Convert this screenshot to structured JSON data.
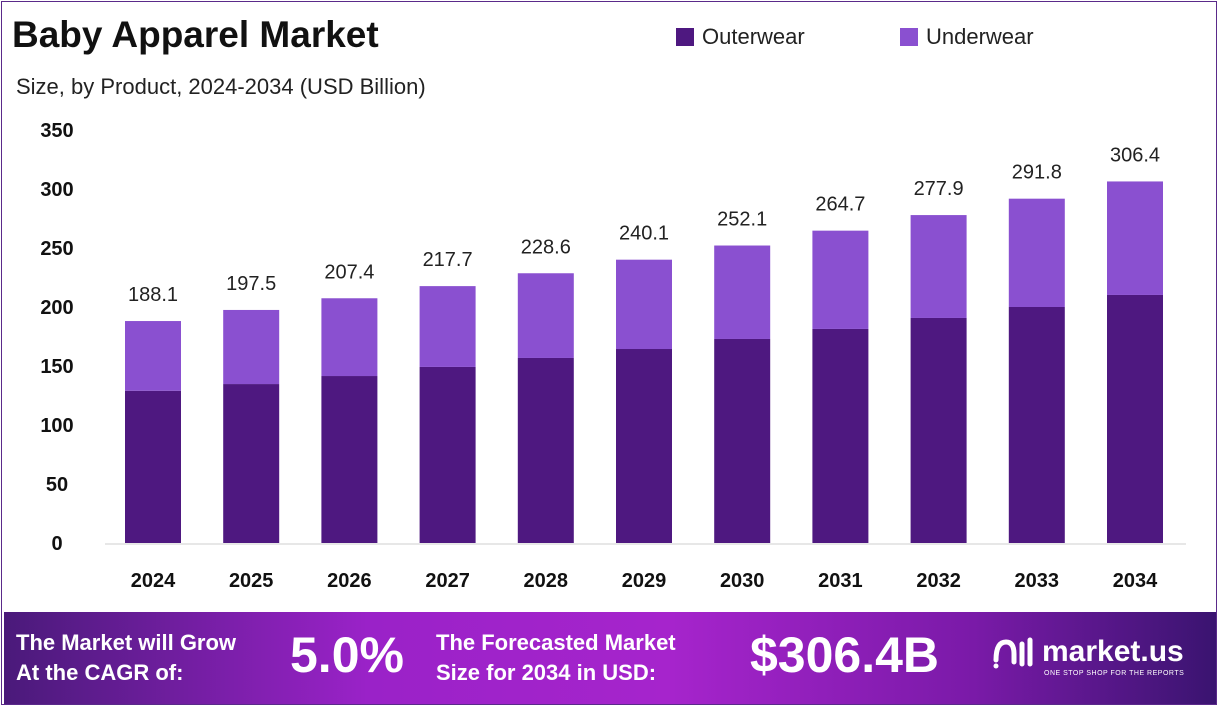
{
  "chart_data": {
    "type": "bar",
    "stacked": true,
    "title": "Baby Apparel Market",
    "subtitle": "Size, by Product, 2024-2034 (USD Billion)",
    "categories": [
      "2024",
      "2025",
      "2026",
      "2027",
      "2028",
      "2029",
      "2030",
      "2031",
      "2032",
      "2033",
      "2034"
    ],
    "series": [
      {
        "name": "Outerwear",
        "color": "#4e1880",
        "values": [
          129.0,
          134.7,
          141.5,
          149.2,
          156.8,
          164.4,
          172.9,
          181.4,
          190.7,
          200.0,
          210.2
        ]
      },
      {
        "name": "Underwear",
        "color": "#8a50d0",
        "values": [
          59.1,
          62.8,
          65.9,
          68.5,
          71.8,
          75.7,
          79.2,
          83.3,
          87.2,
          91.8,
          96.2
        ]
      }
    ],
    "totals": [
      "188.1",
      "197.5",
      "207.4",
      "217.7",
      "228.6",
      "240.1",
      "252.1",
      "264.7",
      "277.9",
      "291.8",
      "306.4"
    ],
    "yticks": [
      "0",
      "50",
      "100",
      "150",
      "200",
      "250",
      "300",
      "350"
    ],
    "ylim": [
      0,
      350
    ],
    "grid": false,
    "legend_position": "top-right"
  },
  "footer": {
    "cagr_line1": "The Market will Grow",
    "cagr_line2": "At the CAGR of:",
    "cagr_value": "5.0%",
    "forecast_line1": "The Forecasted Market",
    "forecast_line2": "Size for 2034 in USD:",
    "forecast_value": "$306.4B",
    "logo_name": "market.us",
    "logo_tagline": "ONE STOP SHOP FOR THE REPORTS"
  }
}
